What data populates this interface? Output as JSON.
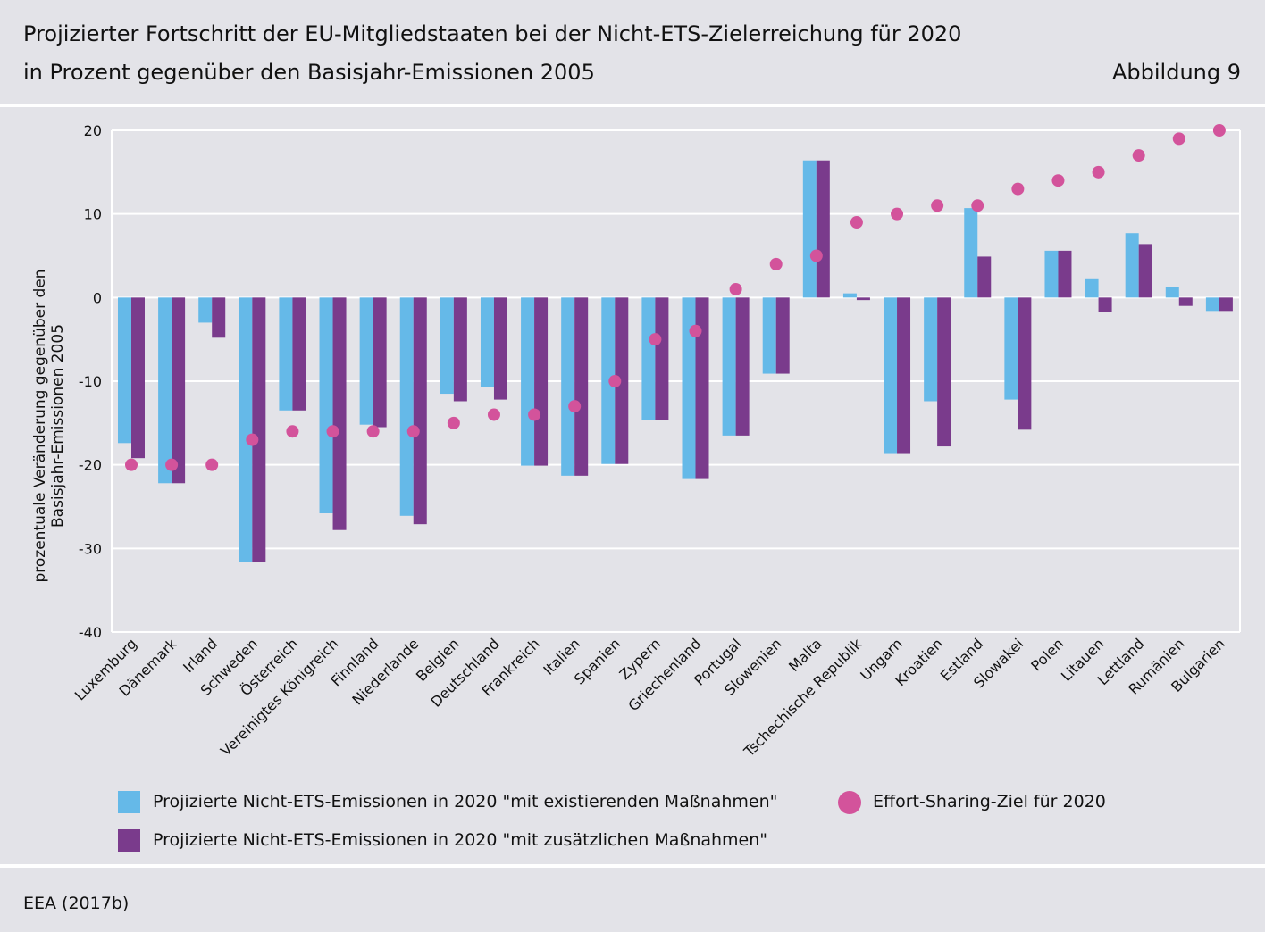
{
  "header": {
    "title": "Projizierter Fortschritt der EU-Mitgliedstaaten bei der Nicht-ETS-Zielerreichung für 2020",
    "subtitle": "in Prozent gegenüber den Basisjahr-Emissionen 2005",
    "figure_label": "Abbildung 9"
  },
  "source": "EEA (2017b)",
  "colors": {
    "existing": "#65b9e8",
    "additional": "#7a3b8c",
    "target": "#d3539b"
  },
  "chart_data": {
    "type": "bar",
    "title": "Projizierter Fortschritt der EU-Mitgliedstaaten bei der Nicht-ETS-Zielerreichung für 2020",
    "subtitle": "in Prozent gegenüber den Basisjahr-Emissionen 2005",
    "ylabel": "prozentuale Veränderung gegenüber den Basisjahr-Emissionen 2005",
    "ylabel_lines": [
      "prozentuale Veränderung gegenüber den",
      "Basisjahr-Emissionen 2005"
    ],
    "ylim": [
      -40,
      20
    ],
    "yticks": [
      20,
      10,
      0,
      -10,
      -20,
      -30,
      -40
    ],
    "ytick_labels": [
      "20",
      "10",
      "0",
      "-10",
      "-20",
      "-30",
      "-40"
    ],
    "grid": true,
    "legend_position": "bottom",
    "categories": [
      "Luxemburg",
      "Dänemark",
      "Irland",
      "Schweden",
      "Österreich",
      "Vereinigtes Königreich",
      "Finnland",
      "Niederlande",
      "Belgien",
      "Deutschland",
      "Frankreich",
      "Italien",
      "Spanien",
      "Zypern",
      "Griechenland",
      "Portugal",
      "Slowenien",
      "Malta",
      "Tschechische Republik",
      "Ungarn",
      "Kroatien",
      "Estland",
      "Slowakei",
      "Polen",
      "Litauen",
      "Lettland",
      "Rumänien",
      "Bulgarien"
    ],
    "series": [
      {
        "name": "Projizierte Nicht-ETS-Emissionen in 2020 \"mit existierenden Maßnahmen\"",
        "kind": "bar",
        "values": [
          -17.4,
          -22.2,
          -3.0,
          -31.6,
          -13.5,
          -25.8,
          -15.2,
          -26.1,
          -11.5,
          -10.7,
          -20.1,
          -21.3,
          -19.9,
          -14.6,
          -21.7,
          -16.5,
          -9.1,
          16.4,
          0.5,
          -18.6,
          -12.4,
          10.7,
          -12.2,
          5.6,
          2.3,
          7.7,
          1.3,
          -1.6
        ]
      },
      {
        "name": "Projizierte Nicht-ETS-Emissionen in 2020 \"mit zusätzlichen Maßnahmen\"",
        "kind": "bar",
        "values": [
          -19.2,
          -22.2,
          -4.8,
          -31.6,
          -13.5,
          -27.8,
          -15.5,
          -27.1,
          -12.4,
          -12.2,
          -20.1,
          -21.3,
          -19.9,
          -14.6,
          -21.7,
          -16.5,
          -9.1,
          16.4,
          -0.3,
          -18.6,
          -17.8,
          4.9,
          -15.8,
          5.6,
          -1.7,
          6.4,
          -1.0,
          -1.6
        ]
      },
      {
        "name": "Effort-Sharing-Ziel für 2020",
        "kind": "point",
        "values": [
          -20,
          -20,
          -20,
          -17,
          -16,
          -16,
          -16,
          -16,
          -15,
          -14,
          -14,
          -13,
          -10,
          -5,
          -4,
          1,
          4,
          5,
          9,
          10,
          11,
          11,
          13,
          14,
          15,
          17,
          19,
          20
        ]
      }
    ]
  }
}
